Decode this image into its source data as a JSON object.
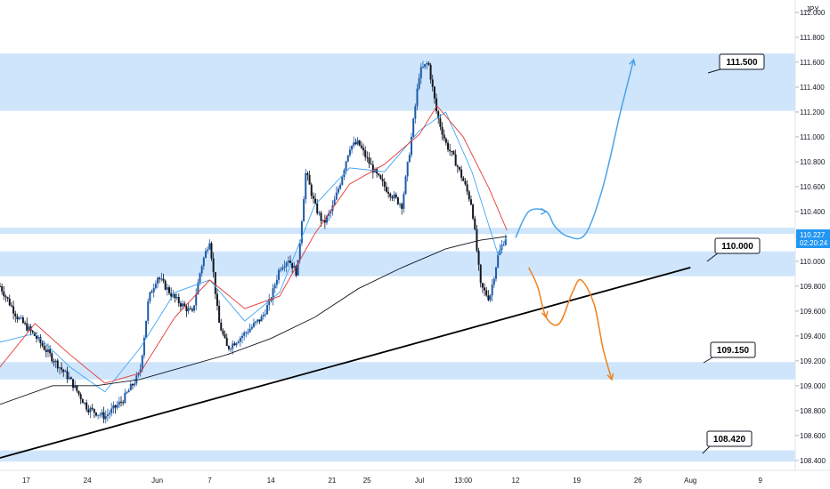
{
  "instrument_currency": "JPY",
  "current_price": {
    "value": "110.227",
    "countdown": "02:20:24"
  },
  "colors": {
    "zone": "#cfe5fb",
    "up_scenario": "#4aa3e8",
    "down_scenario": "#f0801e",
    "ma_fast": "#42a5f5",
    "ma_mid": "#e53935",
    "ma_slow": "#131722",
    "candle_up": "#1e5aa8",
    "candle_down": "#131722",
    "price_tag": "#2196f3"
  },
  "chart_data": {
    "type": "candlestick",
    "y_axis": {
      "min": 108.32,
      "max": 112.1,
      "ticks": [
        "112.000",
        "111.800",
        "111.600",
        "111.400",
        "111.200",
        "111.000",
        "110.800",
        "110.600",
        "110.400",
        "110.200",
        "110.000",
        "109.800",
        "109.600",
        "109.400",
        "109.200",
        "109.000",
        "108.800",
        "108.600",
        "108.400"
      ]
    },
    "x_axis": {
      "labels": [
        {
          "label": "17",
          "day": 0
        },
        {
          "label": "24",
          "day": 7
        },
        {
          "label": "Jun",
          "day": 15
        },
        {
          "label": "7",
          "day": 21
        },
        {
          "label": "14",
          "day": 28
        },
        {
          "label": "21",
          "day": 35
        },
        {
          "label": "25",
          "day": 39
        },
        {
          "label": "Jul",
          "day": 45
        },
        {
          "label": "13:00",
          "day": 50
        },
        {
          "label": "12",
          "day": 56
        },
        {
          "label": "19",
          "day": 63
        },
        {
          "label": "26",
          "day": 70
        },
        {
          "label": "Aug",
          "day": 76
        },
        {
          "label": "9",
          "day": 84
        }
      ],
      "day_min": -3,
      "day_max": 88
    },
    "zones": [
      {
        "top": 111.67,
        "bottom": 111.21
      },
      {
        "top": 110.27,
        "bottom": 110.22
      },
      {
        "top": 110.08,
        "bottom": 109.88
      },
      {
        "top": 109.19,
        "bottom": 109.05
      },
      {
        "top": 108.48,
        "bottom": 108.39
      }
    ],
    "price_path": [
      [
        -3,
        109.8
      ],
      [
        -1,
        109.55
      ],
      [
        1,
        109.4
      ],
      [
        3,
        109.22
      ],
      [
        5,
        109.05
      ],
      [
        7,
        108.82
      ],
      [
        9,
        108.75
      ],
      [
        11,
        108.88
      ],
      [
        13,
        109.1
      ],
      [
        14,
        109.7
      ],
      [
        15,
        109.88
      ],
      [
        17,
        109.7
      ],
      [
        19,
        109.58
      ],
      [
        20,
        109.95
      ],
      [
        21,
        110.18
      ],
      [
        22,
        109.52
      ],
      [
        23,
        109.3
      ],
      [
        25,
        109.42
      ],
      [
        27,
        109.55
      ],
      [
        28,
        109.7
      ],
      [
        29,
        109.95
      ],
      [
        30,
        110.02
      ],
      [
        31,
        109.9
      ],
      [
        32,
        110.72
      ],
      [
        33,
        110.45
      ],
      [
        34,
        110.3
      ],
      [
        35,
        110.42
      ],
      [
        36,
        110.65
      ],
      [
        37,
        110.92
      ],
      [
        38,
        110.95
      ],
      [
        39,
        110.82
      ],
      [
        40,
        110.7
      ],
      [
        41,
        110.6
      ],
      [
        42,
        110.52
      ],
      [
        43,
        110.45
      ],
      [
        44,
        110.95
      ],
      [
        45,
        111.52
      ],
      [
        46,
        111.6
      ],
      [
        47,
        111.18
      ],
      [
        48,
        110.95
      ],
      [
        49,
        110.82
      ],
      [
        50,
        110.65
      ],
      [
        51,
        110.45
      ],
      [
        52,
        109.8
      ],
      [
        53,
        109.7
      ],
      [
        54,
        110.05
      ],
      [
        55,
        110.22
      ]
    ],
    "moving_averages": [
      {
        "points": [
          [
            -3,
            109.35
          ],
          [
            1,
            109.42
          ],
          [
            5,
            109.15
          ],
          [
            9,
            108.95
          ],
          [
            13,
            109.3
          ],
          [
            17,
            109.75
          ],
          [
            21,
            109.85
          ],
          [
            25,
            109.52
          ],
          [
            29,
            109.75
          ],
          [
            33,
            110.45
          ],
          [
            37,
            110.75
          ],
          [
            41,
            110.72
          ],
          [
            45,
            111.05
          ],
          [
            48,
            111.2
          ],
          [
            51,
            110.72
          ],
          [
            54,
            110.05
          ],
          [
            55,
            110.2
          ]
        ]
      },
      {
        "points": [
          [
            -3,
            109.15
          ],
          [
            1,
            109.5
          ],
          [
            5,
            109.25
          ],
          [
            9,
            109.02
          ],
          [
            13,
            109.1
          ],
          [
            17,
            109.55
          ],
          [
            21,
            109.85
          ],
          [
            25,
            109.62
          ],
          [
            29,
            109.72
          ],
          [
            33,
            110.22
          ],
          [
            37,
            110.62
          ],
          [
            41,
            110.78
          ],
          [
            45,
            111.02
          ],
          [
            47,
            111.25
          ],
          [
            50,
            111.0
          ],
          [
            53,
            110.58
          ],
          [
            55,
            110.25
          ]
        ]
      },
      {
        "points": [
          [
            -3,
            108.85
          ],
          [
            3,
            109.0
          ],
          [
            8,
            109.0
          ],
          [
            13,
            109.05
          ],
          [
            18,
            109.15
          ],
          [
            23,
            109.25
          ],
          [
            28,
            109.38
          ],
          [
            33,
            109.55
          ],
          [
            38,
            109.78
          ],
          [
            43,
            109.95
          ],
          [
            48,
            110.1
          ],
          [
            52,
            110.17
          ],
          [
            55,
            110.2
          ]
        ]
      }
    ],
    "trendline": [
      [
        -3,
        108.42
      ],
      [
        76,
        109.95
      ]
    ],
    "scenarios": [
      {
        "direction": "up",
        "points": [
          [
            56,
            110.19
          ],
          [
            57.5,
            110.4
          ],
          [
            59.5,
            110.4
          ],
          [
            60.5,
            110.28
          ],
          [
            62,
            110.2
          ],
          [
            64,
            110.22
          ],
          [
            66,
            110.6
          ],
          [
            68,
            111.2
          ],
          [
            69.5,
            111.62
          ]
        ]
      },
      {
        "direction": "down",
        "points": [
          [
            57.5,
            109.95
          ],
          [
            58.5,
            109.8
          ],
          [
            59.5,
            109.55
          ],
          [
            61,
            109.5
          ],
          [
            62.5,
            109.75
          ],
          [
            63.5,
            109.85
          ],
          [
            65,
            109.65
          ],
          [
            66,
            109.3
          ],
          [
            67,
            109.05
          ]
        ]
      }
    ],
    "callouts": [
      {
        "value": "111.500"
      },
      {
        "value": "110.000"
      },
      {
        "value": "109.150"
      },
      {
        "value": "108.420"
      }
    ]
  }
}
